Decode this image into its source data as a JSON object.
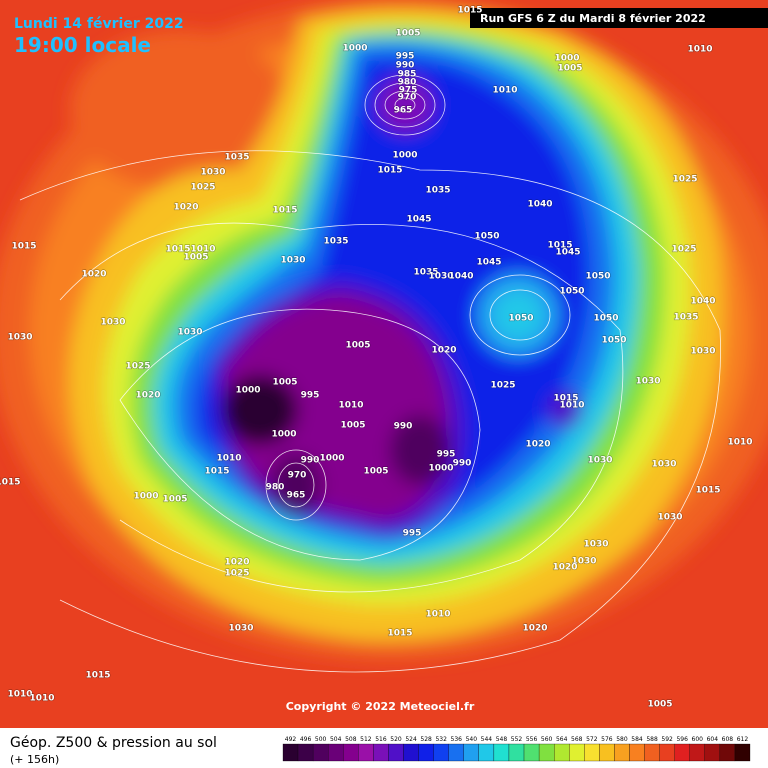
{
  "header": {
    "date": "Lundi 14 février 2022",
    "time": "19:00 locale",
    "run": "Run GFS 6 Z du Mardi 8 février 2022"
  },
  "copyright": "Copyright © 2022 Meteociel.fr",
  "footer": {
    "title": "Géop. Z500 & pression au sol",
    "lead": "(+ 156h)"
  },
  "legend": {
    "levels": [
      492,
      496,
      500,
      504,
      508,
      512,
      516,
      520,
      524,
      528,
      532,
      536,
      540,
      544,
      548,
      552,
      556,
      560,
      564,
      568,
      572,
      576,
      580,
      584,
      588,
      592,
      596,
      600,
      604,
      608,
      612
    ],
    "colors": [
      "#2a0030",
      "#3c0048",
      "#50005e",
      "#6a0078",
      "#84008e",
      "#9a10a8",
      "#7a10b8",
      "#5010c8",
      "#2010d0",
      "#1020e8",
      "#1040f0",
      "#1870f0",
      "#20a0f0",
      "#20c8e8",
      "#20e0d0",
      "#30e0a0",
      "#50e070",
      "#80e040",
      "#b0e830",
      "#e0f030",
      "#f8e030",
      "#f8c020",
      "#f8a020",
      "#f88020",
      "#f06020",
      "#e84020",
      "#e02020",
      "#c01818",
      "#a01010",
      "#700808",
      "#300000"
    ]
  },
  "isobar_labels": [
    1015,
    1005,
    1000,
    995,
    990,
    985,
    980,
    975,
    970,
    965,
    1000,
    1005,
    1010,
    1010,
    1000,
    1015,
    1035,
    1030,
    1025,
    1020,
    1015,
    1035,
    1040,
    1045,
    1025,
    1050,
    1015,
    1045,
    1035,
    1015,
    1015,
    1010,
    1005,
    1030,
    1045,
    1035,
    1030,
    1040,
    1050,
    1025,
    1020,
    1050,
    1040,
    1030,
    1050,
    1050,
    1035,
    1030,
    1030,
    1005,
    1020,
    1050,
    1030,
    1025,
    1025,
    1030,
    1020,
    1000,
    1005,
    995,
    1010,
    1015,
    1010,
    990,
    1005,
    1000,
    1010,
    990,
    1000,
    1020,
    1010,
    995,
    1015,
    1005,
    1000,
    990,
    1030,
    1030,
    970,
    980,
    965,
    1015,
    1000,
    1005,
    1015,
    995,
    1030,
    1030,
    1030,
    1020,
    1020,
    1025,
    1010,
    1015,
    1020,
    1030,
    1015,
    1010,
    1010,
    1005
  ]
}
